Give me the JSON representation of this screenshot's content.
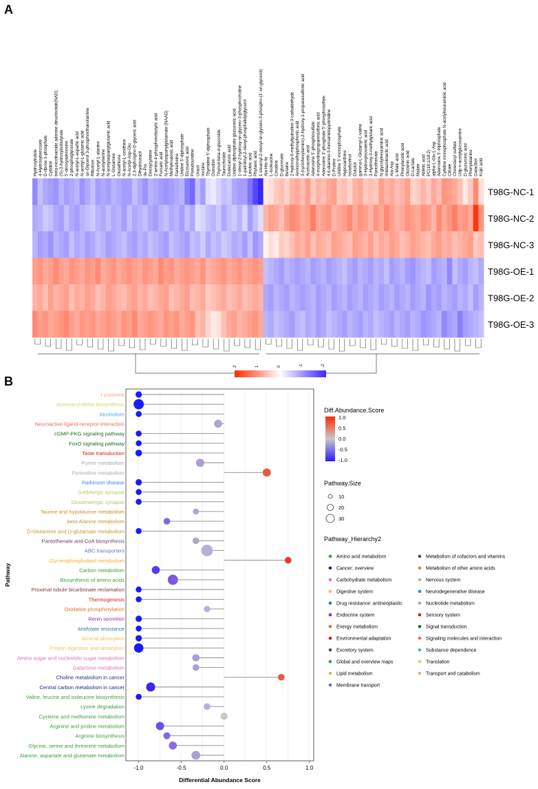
{
  "panelA": {
    "letter": "A",
    "samples": [
      "T98G-NC-1",
      "T98G-NC-2",
      "T98G-NC-3",
      "T98G-OE-1",
      "T98G-OE-2",
      "T98G-OE-3"
    ],
    "metabolites": [
      "Hydroxyindole",
      "4-Hydroxybenzoate",
      "D-ribose 1-phosphate",
      "Cytidine",
      "beta-nicotinamide adenine dinucleotide(NAD)",
      "(S)-3-hydroxyisobutyrate",
      "5'-deoxyadenosine",
      "2-phosphoglycerate",
      "N-acetyl-L-aspartic acid",
      "N-acetyl-L-glutamic acid",
      "sn-Glycerol 3-phosphoethanolamine",
      "Ribulose",
      "N-Acetyl-L-alanine",
      "N-acetylserine",
      "N-acetylaspartylglutamic acid",
      "L-Glutamine",
      "Glutathione",
      "N-acetyl-L-ornithine",
      "N-Acetyl-Asp-Glu",
      "2,3-diphospho-D-glyceric acid",
      "Dihydrouracil",
      "Ile-Pro",
      "Deoxycytidine",
      "2-amino-4-phosphonobutyric acid",
      "Fumaric acid",
      "N-Acetylaspartylglutamate (NAAG)",
      "Methylmalonic acid",
      "Pantetheine",
      "Uridine 5'-diphosphate",
      "Eicosanoic acid",
      "Pseudouridine",
      "Uracil",
      "Inosine",
      "Thymidine 5'-diphosphate",
      "Ostruthin",
      "Thymol-beta-d-glucoside",
      "Taurocholate",
      "Dodecanoic acid",
      "Uridine diphosphate glucuronic acid",
      "1-oleoyl-2-hydroxy-sn-glycero-3-phosphocholine",
      "1-palmitoyl-2-oleoyl-phosphatidylglycerol",
      "Linoleic acid",
      "Phytanic acid",
      "1-stearoyl-2-oleoyl-sn-glycero-3-phospho-(1'-sn-glycerol)",
      "Ala-His-Ile",
      "L-Isoleucine",
      "Creatine",
      "D-gluconate",
      "Betaine",
      "2-hydroxy-6-methylquinoline-3-carbaldehyde",
      "Aminomethylphosphonic acid",
      "3-(cyclohexylamino)-2-hydroxy-1-propanesulfonic acid",
      "Acetoacetic acid",
      "Adenosine 5'-phosphosulfate",
      "4-morpholinepropanesulfonic acid",
      "Adenosine 3'-phosphate 5'-phosphosulfate",
      "4,6-diamino-5-formamidopyrimidine",
      "D-Proline",
      "Uridine 5'-monophosphate",
      "Hypoxanthine",
      "Isoarborinol",
      "Dulcitol",
      "gamma-L-Glutamyl-L-valine",
      "3-Hydroxyisovaleric acid",
      "3-Hydroxy-3-methylglutaric acid",
      "Pantothenate",
      "N-glycolylneuraminic acid",
      "Imidazolelactic acid",
      "Ala-Asp",
      "L-Malic acid",
      "Phenylacetic acid",
      "Glutamic acid",
      "D-Lactate",
      "Malate",
      "Abietic acid",
      "PC(18:1/18:2)",
      "alpha-L-Glu-L-Asp",
      "Adenosine 5'-triphosphate",
      "Cytidine monophosphate N-acetylneuraminic acid",
      "Citrate",
      "Cholesteryl sulfate",
      "Udp-n-acetylglucosamine",
      "D-glucuronic acid",
      "Phenylalanine",
      "Galactitol",
      "Kojic acid"
    ],
    "heatmap_values": [
      [
        -1.1,
        -0.6,
        -0.8,
        -0.9,
        -1.0,
        -0.7,
        -0.9,
        -0.8,
        -0.7,
        -1.0,
        -0.8,
        -0.6,
        -0.9,
        -0.8,
        -0.9,
        -0.7,
        -0.8,
        -0.9,
        -0.9,
        -0.6,
        -0.8,
        -1.0,
        -0.7,
        -0.8,
        -0.9,
        -1.0,
        -0.9,
        -0.8,
        -0.7,
        -1.2,
        -1.4,
        -0.6,
        -0.9,
        -0.3,
        -0.2,
        -0.4,
        -0.6,
        -0.5,
        -0.8,
        -0.9,
        -0.9,
        -1.3,
        -1.7,
        -2.0,
        0.2,
        0.3,
        0.5,
        0.6,
        0.4,
        0.7,
        0.8,
        0.6,
        0.9,
        0.5,
        0.7,
        0.6,
        0.8,
        0.9,
        0.5,
        0.6,
        0.4,
        0.7,
        0.8,
        0.5,
        0.6,
        0.5,
        0.9,
        0.7,
        0.8,
        0.6,
        0.7,
        0.9,
        0.4,
        0.5,
        0.7,
        0.5,
        0.8,
        0.6,
        1.0,
        0.9,
        0.8,
        0.6,
        0.2,
        0.5,
        1.1,
        0.3
      ],
      [
        -0.8,
        -0.7,
        -0.5,
        -0.6,
        -0.8,
        -0.9,
        -0.6,
        -0.8,
        -0.9,
        -0.7,
        -0.6,
        -0.5,
        -0.7,
        -0.8,
        -0.6,
        -0.8,
        -0.7,
        -0.9,
        -0.6,
        -0.8,
        -0.7,
        -0.6,
        -0.8,
        -0.9,
        -0.7,
        -0.6,
        -0.8,
        -0.7,
        -0.9,
        -0.6,
        -0.8,
        -0.3,
        -0.4,
        -0.6,
        -0.7,
        -0.5,
        -0.8,
        -0.6,
        -0.5,
        -0.7,
        -0.4,
        -0.9,
        -0.6,
        -0.3,
        0.7,
        0.9,
        0.8,
        0.6,
        0.9,
        1.1,
        1.0,
        0.8,
        0.9,
        1.2,
        0.8,
        0.9,
        1.0,
        0.7,
        0.8,
        0.9,
        1.1,
        0.8,
        1.0,
        0.9,
        0.7,
        1.0,
        0.8,
        1.1,
        0.9,
        0.7,
        0.8,
        1.0,
        0.9,
        0.8,
        1.0,
        0.9,
        0.7,
        1.1,
        0.8,
        1.0,
        1.2,
        0.9,
        1.0,
        0.8,
        1.9,
        1.0
      ],
      [
        -0.7,
        -0.9,
        -0.8,
        -1.0,
        -0.7,
        -0.8,
        -0.9,
        -0.6,
        -0.8,
        -0.7,
        -0.9,
        -0.8,
        -0.6,
        -0.7,
        -0.9,
        -0.8,
        -0.7,
        -0.6,
        -0.8,
        -0.9,
        -0.7,
        -0.8,
        -0.6,
        -0.7,
        -0.8,
        -0.9,
        -0.6,
        -0.7,
        -0.8,
        -0.9,
        -0.6,
        -0.7,
        -0.5,
        -0.8,
        -0.6,
        -0.7,
        -0.5,
        -0.6,
        -0.8,
        -0.7,
        -0.9,
        -0.6,
        -1.0,
        -0.8,
        0.1,
        0.3,
        0.2,
        0.5,
        0.4,
        0.6,
        0.8,
        0.7,
        0.9,
        0.6,
        0.8,
        0.7,
        0.6,
        0.9,
        0.8,
        0.7,
        0.6,
        0.9,
        0.8,
        0.7,
        0.9,
        0.6,
        0.8,
        0.7,
        0.9,
        0.8,
        0.6,
        0.7,
        0.9,
        0.8,
        0.7,
        0.6,
        0.8,
        0.9,
        0.7,
        0.8,
        0.6,
        0.7,
        0.8,
        0.9,
        0.5,
        0.6
      ],
      [
        0.9,
        1.0,
        0.8,
        0.9,
        1.1,
        0.9,
        0.8,
        1.0,
        0.9,
        0.8,
        1.0,
        0.9,
        1.1,
        0.8,
        0.9,
        1.0,
        0.8,
        0.9,
        1.0,
        0.9,
        0.8,
        1.0,
        0.9,
        0.8,
        1.1,
        0.9,
        1.0,
        0.8,
        0.9,
        1.0,
        0.9,
        0.8,
        1.0,
        0.7,
        0.8,
        0.9,
        1.0,
        0.8,
        0.9,
        1.0,
        0.8,
        0.9,
        1.0,
        0.9,
        -0.6,
        -0.7,
        -0.8,
        -0.9,
        -0.7,
        -0.8,
        -0.9,
        -0.8,
        -0.7,
        -0.9,
        -0.8,
        -0.7,
        -0.9,
        -0.8,
        -0.7,
        -0.6,
        -0.8,
        -0.9,
        -0.7,
        -0.8,
        -0.9,
        -0.7,
        -0.8,
        -0.6,
        -0.9,
        -0.8,
        -0.7,
        -0.9,
        -1.0,
        -0.8,
        -0.7,
        -0.6,
        -0.9,
        -0.8,
        -0.7,
        -1.1,
        -0.6,
        -0.8,
        -0.9,
        -0.7,
        -0.6,
        -0.8
      ],
      [
        0.7,
        0.8,
        0.6,
        0.9,
        0.7,
        0.8,
        0.9,
        0.6,
        0.8,
        0.7,
        0.9,
        0.8,
        0.6,
        0.7,
        0.9,
        0.8,
        0.7,
        0.6,
        0.8,
        0.9,
        0.7,
        0.8,
        0.6,
        0.7,
        0.8,
        0.9,
        0.6,
        0.7,
        0.8,
        0.9,
        0.6,
        0.7,
        0.8,
        0.5,
        0.6,
        0.7,
        0.8,
        0.6,
        0.7,
        0.8,
        0.6,
        0.7,
        0.8,
        0.7,
        -0.8,
        -0.9,
        -0.7,
        -0.8,
        -0.9,
        -0.7,
        -0.8,
        -0.9,
        -0.8,
        -0.7,
        -0.9,
        -0.8,
        -0.7,
        -0.9,
        -0.8,
        -0.7,
        -0.9,
        -0.8,
        -0.7,
        -0.9,
        -0.8,
        -0.7,
        -0.9,
        -0.8,
        -0.7,
        -0.9,
        -0.8,
        -0.7,
        -0.9,
        -0.8,
        -0.7,
        -1.0,
        -0.8,
        -0.9,
        -0.7,
        -0.8,
        -0.9,
        -0.7,
        -0.8,
        -0.6,
        -0.9,
        -0.7
      ],
      [
        1.1,
        0.9,
        1.0,
        0.8,
        0.9,
        1.0,
        1.1,
        0.9,
        0.8,
        1.0,
        0.9,
        1.0,
        0.8,
        0.9,
        1.0,
        0.9,
        0.8,
        1.0,
        0.9,
        1.1,
        0.8,
        0.9,
        1.0,
        0.9,
        0.8,
        1.0,
        0.9,
        1.0,
        0.8,
        0.9,
        1.0,
        0.6,
        0.7,
        0.4,
        0.2,
        0.3,
        0.6,
        0.8,
        0.9,
        0.7,
        0.8,
        0.9,
        1.0,
        0.8,
        -0.7,
        -0.8,
        -0.6,
        -0.7,
        -0.8,
        -0.9,
        -0.7,
        -0.6,
        -0.8,
        -0.7,
        -0.9,
        -0.8,
        -0.6,
        -0.7,
        -0.8,
        -0.9,
        -0.7,
        -0.8,
        -0.9,
        -0.7,
        -0.8,
        -0.6,
        -0.7,
        -0.8,
        -0.9,
        -0.7,
        -0.8,
        -0.9,
        -0.7,
        -0.8,
        -1.0,
        -0.9,
        -0.8,
        -0.7,
        -1.1,
        -0.9,
        -0.8,
        -1.2,
        -0.9,
        -0.8,
        -0.7,
        -0.6
      ]
    ],
    "colorbar": {
      "ticks": [
        "2",
        "1",
        "0",
        "-1",
        "-2"
      ],
      "colors": [
        "#ff2a00",
        "#ffffff",
        "#3a28ff"
      ]
    }
  },
  "panelB": {
    "letter": "B",
    "ylabel": "Pathway",
    "xlabel": "Differential Abundance Score",
    "xlim": [
      -1.15,
      1.05
    ],
    "xticks": [
      "-1.0",
      "-0.5",
      "0.0",
      "0.5",
      "1.0"
    ],
    "xtick_values": [
      -1.0,
      -0.5,
      0.0,
      0.5,
      1.0
    ],
    "pathways": [
      {
        "name": "Lysosome",
        "score": -1.0,
        "size": 4,
        "color": "#f4a582",
        "dot": "#1a1aff"
      },
      {
        "name": "Aminoacyl-tRNA biosynthesis",
        "score": -1.0,
        "size": 22,
        "color": "#c8d86a",
        "dot": "#1a1aff"
      },
      {
        "name": "Alcoholism",
        "score": -1.0,
        "size": 3,
        "color": "#4fa8e0",
        "dot": "#1a1aff"
      },
      {
        "name": "Neuroactive ligand-receptor interaction",
        "score": -0.07,
        "size": 10,
        "color": "#f06a50",
        "dot": "#a8a8c8"
      },
      {
        "name": "cGMP-PKG signaling pathway",
        "score": -1.0,
        "size": 3,
        "color": "#1e6a1e",
        "dot": "#1a1aff"
      },
      {
        "name": "FoxO signaling pathway",
        "score": -1.0,
        "size": 3,
        "color": "#1e6a1e",
        "dot": "#1a1aff"
      },
      {
        "name": "Taste transduction",
        "score": -1.0,
        "size": 5,
        "color": "#cc1a1a",
        "dot": "#1a1aff"
      },
      {
        "name": "Purine metabolism",
        "score": -0.28,
        "size": 11,
        "color": "#aaaaaa",
        "dot": "#b09ad8"
      },
      {
        "name": "Pyrimidine metabolism",
        "score": 0.5,
        "size": 11,
        "color": "#aaaaaa",
        "dot": "#e85a40"
      },
      {
        "name": "Parkinson disease",
        "score": -1.0,
        "size": 4,
        "color": "#2a8ad8",
        "dot": "#1a1aff"
      },
      {
        "name": "GABAergic synapse",
        "score": -1.0,
        "size": 3,
        "color": "#b0c860",
        "dot": "#1a1aff"
      },
      {
        "name": "Glutamatergic synapse",
        "score": -1.0,
        "size": 3,
        "color": "#b0c860",
        "dot": "#1a1aff"
      },
      {
        "name": "Taurine and hypotaurine metabolism",
        "score": -0.33,
        "size": 3,
        "color": "#c8902a",
        "dot": "#a8a8d0"
      },
      {
        "name": "beta-Alanine metabolism",
        "score": -0.67,
        "size": 5,
        "color": "#c8902a",
        "dot": "#7c6ae8"
      },
      {
        "name": "D-Glutamine and D-glutamate metabolism",
        "score": -1.0,
        "size": 3,
        "color": "#c8902a",
        "dot": "#1a1aff"
      },
      {
        "name": "Pantothenate and CoA biosynthesis",
        "score": -0.33,
        "size": 5,
        "color": "#6a3a6a",
        "dot": "#a8a8d0"
      },
      {
        "name": "ABC transporters",
        "score": -0.2,
        "size": 32,
        "color": "#6a6ac8",
        "dot": "#b8b0d8"
      },
      {
        "name": "Glycerophospholipid metabolism",
        "score": 0.75,
        "size": 5,
        "color": "#f0b030",
        "dot": "#e83a2a"
      },
      {
        "name": "Carbon metabolism",
        "score": -0.8,
        "size": 10,
        "color": "#3aa03a",
        "dot": "#5a3ae8"
      },
      {
        "name": "Biosynthesis of amino acids",
        "score": -0.6,
        "size": 22,
        "color": "#3aa03a",
        "dot": "#7a5ae0"
      },
      {
        "name": "Proximal tubule bicarbonate reclamation",
        "score": -1.0,
        "size": 3,
        "color": "#7a3a3a",
        "dot": "#1a1aff"
      },
      {
        "name": "Thermogenesis",
        "score": -1.0,
        "size": 3,
        "color": "#cc1a1a",
        "dot": "#1a1aff"
      },
      {
        "name": "Oxidative phosphorylation",
        "score": -0.2,
        "size": 4,
        "color": "#e07020",
        "dot": "#b8b0d8"
      },
      {
        "name": "Renin secretion",
        "score": -1.0,
        "size": 4,
        "color": "#9a20c8",
        "dot": "#1a1aff"
      },
      {
        "name": "Antifolate resistance",
        "score": -1.0,
        "size": 3,
        "color": "#2a7aa8",
        "dot": "#1a1aff"
      },
      {
        "name": "Mineral absorption",
        "score": -1.0,
        "size": 4,
        "color": "#f4c060",
        "dot": "#1a1aff"
      },
      {
        "name": "Protein digestion and absorption",
        "score": -1.0,
        "size": 17,
        "color": "#f4c060",
        "dot": "#1a1aff"
      },
      {
        "name": "Amino sugar and nucleotide sugar metabolism",
        "score": -0.33,
        "size": 7,
        "color": "#e070b0",
        "dot": "#a8a0d8"
      },
      {
        "name": "Galactose metabolism",
        "score": -0.33,
        "size": 5,
        "color": "#e070b0",
        "dot": "#a8a0d8"
      },
      {
        "name": "Choline metabolism in cancer",
        "score": 0.67,
        "size": 5,
        "color": "#1a2a7a",
        "dot": "#e85a40"
      },
      {
        "name": "Central carbon metabolism in cancer",
        "score": -0.86,
        "size": 15,
        "color": "#1a2a7a",
        "dot": "#3a2ae8"
      },
      {
        "name": "Valine, leucine and isoleucine biosynthesis",
        "score": -1.0,
        "size": 3,
        "color": "#3aa03a",
        "dot": "#1a1aff"
      },
      {
        "name": "Lysine degradation",
        "score": -0.2,
        "size": 5,
        "color": "#3aa03a",
        "dot": "#b8b0d8"
      },
      {
        "name": "Cysteine and methionine metabolism",
        "score": 0.0,
        "size": 6,
        "color": "#3aa03a",
        "dot": "#c8c8c8"
      },
      {
        "name": "Arginine and proline metabolism",
        "score": -0.75,
        "size": 11,
        "color": "#3aa03a",
        "dot": "#6a50e8"
      },
      {
        "name": "Arginine biosynthesis",
        "score": -0.67,
        "size": 6,
        "color": "#3aa03a",
        "dot": "#7c6ae8"
      },
      {
        "name": "Glycine, serine and threonine metabolism",
        "score": -0.6,
        "size": 10,
        "color": "#3aa03a",
        "dot": "#8a6ae0"
      },
      {
        "name": "Alanine, aspartate and glutamate metabolism",
        "score": -0.33,
        "size": 14,
        "color": "#3aa03a",
        "dot": "#a8a0d8"
      }
    ],
    "legend": {
      "score_title": "Diff.Abundance.Score",
      "score_ticks": [
        "1.0",
        "0.5",
        "0.0",
        "-0.5",
        "-1.0"
      ],
      "size_title": "Pathway.Size",
      "size_labels": [
        "10",
        "20",
        "30"
      ],
      "hierarchy_title": "Pathway_Hierarchy2",
      "hierarchy_left": [
        {
          "label": "Amino acid metabolism",
          "color": "#3aa03a"
        },
        {
          "label": "Cancer: overview",
          "color": "#1a2a7a"
        },
        {
          "label": "Carbohydrate metabolism",
          "color": "#e070b0"
        },
        {
          "label": "Digestive system",
          "color": "#f4c060"
        },
        {
          "label": "Drug resistance: antineoplastic",
          "color": "#2a7aa8"
        },
        {
          "label": "Endocrine system",
          "color": "#9a20c8"
        },
        {
          "label": "Energy metabolism",
          "color": "#e07020"
        },
        {
          "label": "Environmental adaptation",
          "color": "#cc1a1a"
        },
        {
          "label": "Excretory system",
          "color": "#7a3a3a"
        },
        {
          "label": "Global and overview maps",
          "color": "#3aa03a"
        },
        {
          "label": "Lipid metabolism",
          "color": "#f0b030"
        },
        {
          "label": "Membrane transport",
          "color": "#6a6ac8"
        }
      ],
      "hierarchy_right": [
        {
          "label": "Metabolism of cofactors and vitamins",
          "color": "#6a3a6a"
        },
        {
          "label": "Metabolism of other amino acids",
          "color": "#c8902a"
        },
        {
          "label": "Nervous system",
          "color": "#b0c860"
        },
        {
          "label": "Neurodegenerative disease",
          "color": "#2a8ad8"
        },
        {
          "label": "Nucleotide metabolism",
          "color": "#aaaaaa"
        },
        {
          "label": "Sensory system",
          "color": "#cc1a1a"
        },
        {
          "label": "Signal transduction",
          "color": "#1e6a1e"
        },
        {
          "label": "Signaling molecules and interaction",
          "color": "#f06a50"
        },
        {
          "label": "Substance dependence",
          "color": "#4fa8e0"
        },
        {
          "label": "Translation",
          "color": "#c8d86a"
        },
        {
          "label": "Transport and catabolism",
          "color": "#f4a582"
        }
      ]
    }
  }
}
